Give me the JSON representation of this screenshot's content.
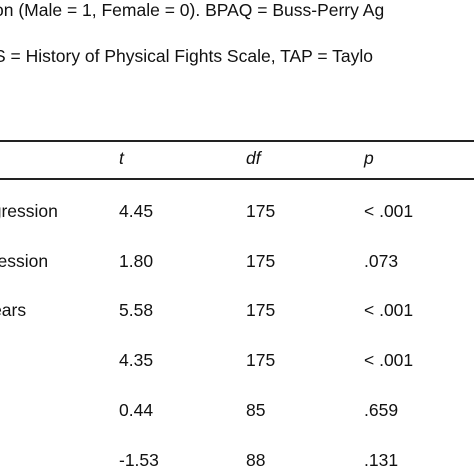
{
  "notes": {
    "line1": "on (Male = 1, Female = 0). BPAQ = Buss-Perry Ag",
    "line2": "S = History of Physical Fights Scale, TAP = Taylo"
  },
  "table": {
    "headers": [
      "",
      "t",
      "df",
      "p"
    ],
    "rows": [
      [
        "ggression",
        "4.45",
        "175",
        "< .001"
      ],
      [
        "gression",
        "1.80",
        "175",
        ".073"
      ],
      [
        "Years",
        "5.58",
        "175",
        "< .001"
      ],
      [
        "",
        "4.35",
        "175",
        "< .001"
      ],
      [
        "",
        "0.44",
        "85",
        ".659"
      ],
      [
        "",
        "-1.53",
        "88",
        ".131"
      ]
    ]
  }
}
